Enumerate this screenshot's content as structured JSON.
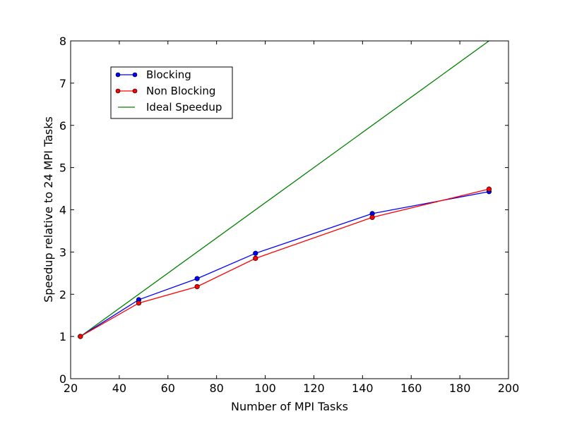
{
  "chart_data": {
    "type": "line",
    "xlabel": "Number of MPI Tasks",
    "ylabel": "Speedup relative to 24 MPI Tasks",
    "xlim": [
      20,
      200
    ],
    "ylim": [
      0,
      8
    ],
    "xticks": [
      20,
      40,
      60,
      80,
      100,
      120,
      140,
      160,
      180,
      200
    ],
    "yticks": [
      0,
      1,
      2,
      3,
      4,
      5,
      6,
      7,
      8
    ],
    "xtick_labels": [
      "20",
      "40",
      "60",
      "80",
      "100",
      "120",
      "140",
      "160",
      "180",
      "200"
    ],
    "ytick_labels": [
      "0",
      "1",
      "2",
      "3",
      "4",
      "5",
      "6",
      "7",
      "8"
    ],
    "grid": false,
    "legend_position": "top-left",
    "series": [
      {
        "name": "Blocking",
        "color": "#0000ff",
        "marker": "circle",
        "x": [
          24,
          48,
          72,
          96,
          144,
          192
        ],
        "y": [
          1.0,
          1.87,
          2.37,
          2.97,
          3.91,
          4.43
        ]
      },
      {
        "name": "Non Blocking",
        "color": "#ff0000",
        "marker": "circle",
        "x": [
          24,
          48,
          72,
          96,
          144,
          192
        ],
        "y": [
          1.0,
          1.79,
          2.18,
          2.85,
          3.82,
          4.49
        ]
      },
      {
        "name": "Ideal Speedup",
        "color": "#008000",
        "marker": "none",
        "x": [
          24,
          192
        ],
        "y": [
          1.0,
          8.0
        ]
      }
    ]
  }
}
